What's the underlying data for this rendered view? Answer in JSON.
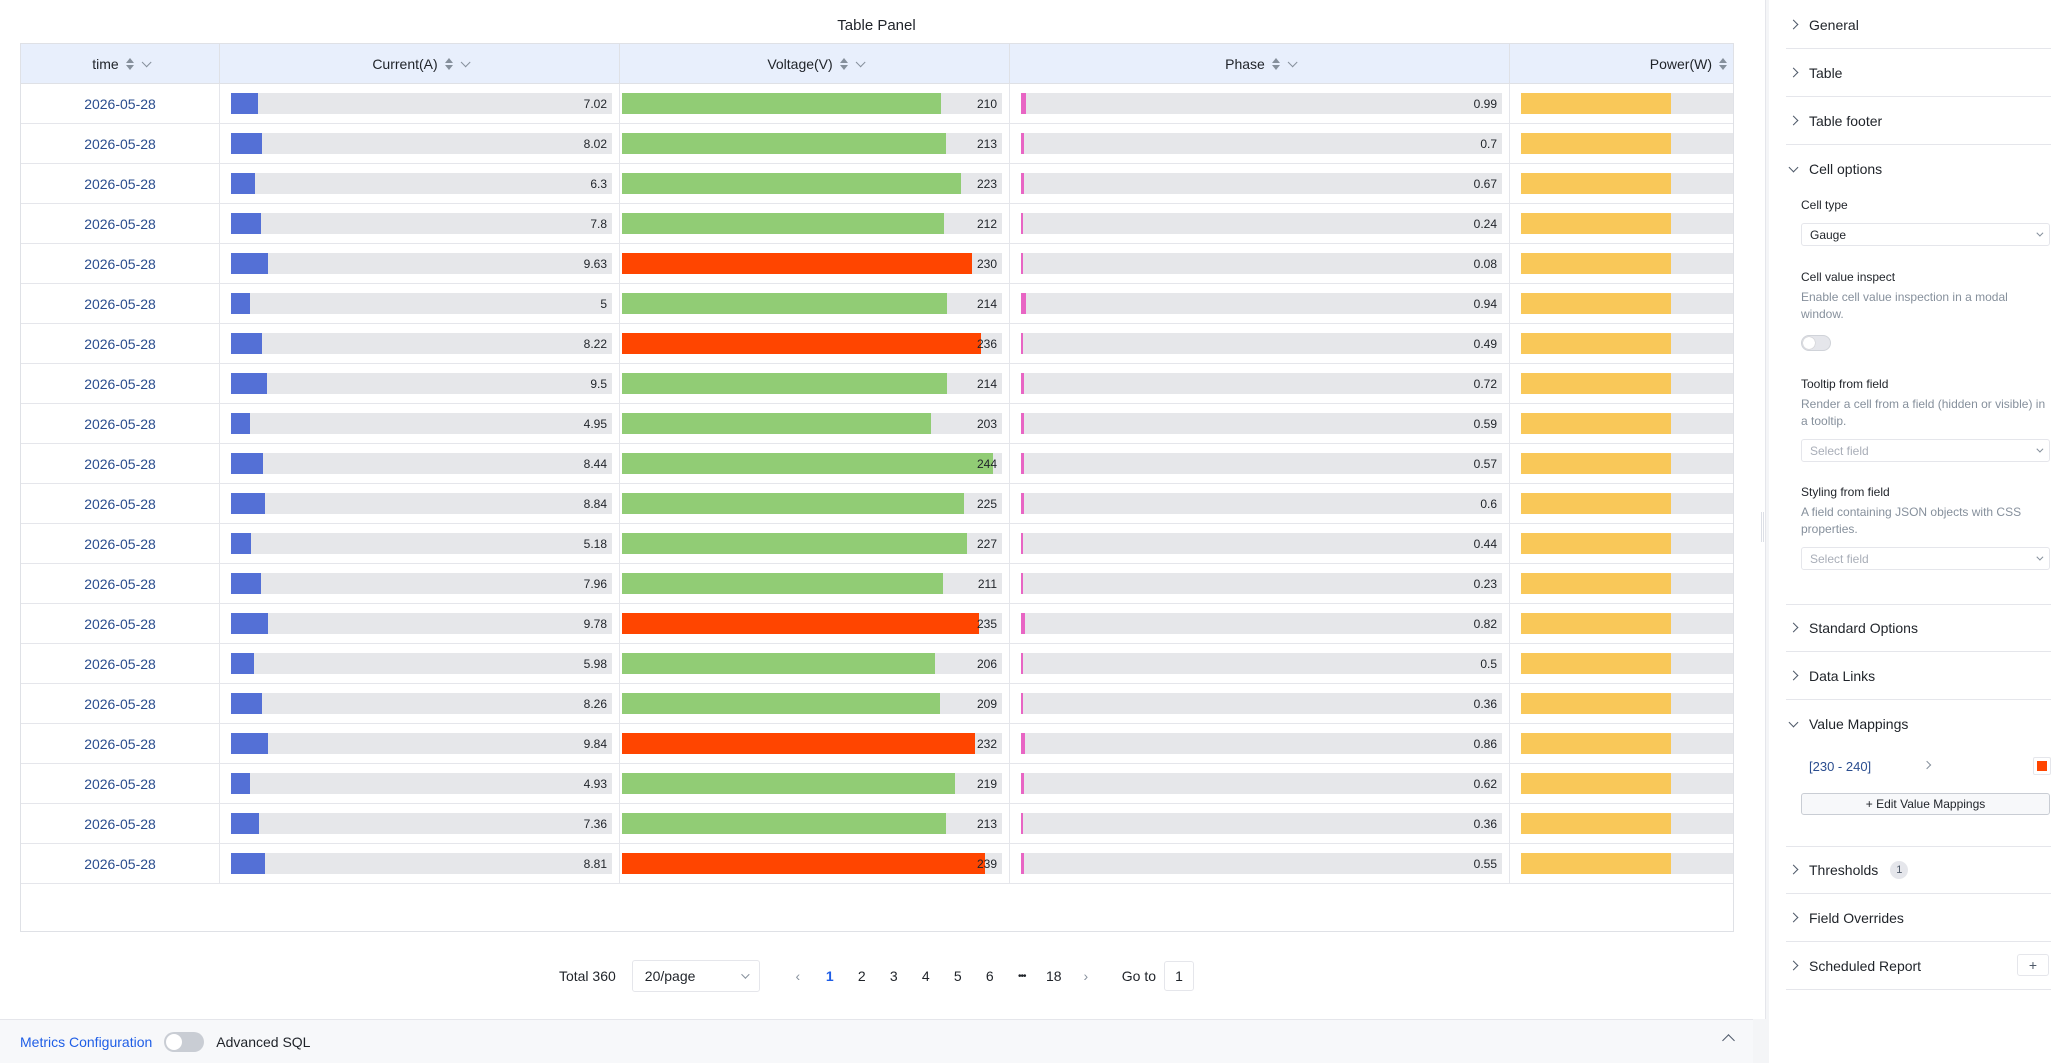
{
  "panel": {
    "title": "Table Panel"
  },
  "columns": [
    {
      "label": "time",
      "sortable": true,
      "filterable": true
    },
    {
      "label": "Current(A)",
      "sortable": true,
      "filterable": true,
      "max": 100,
      "color": "#5470d6"
    },
    {
      "label": "Voltage(V)",
      "sortable": true,
      "filterable": true,
      "max": 250,
      "color": "#91cc75",
      "mapped_color": "#ff4500"
    },
    {
      "label": "Phase",
      "sortable": true,
      "filterable": true,
      "max": 100,
      "color": "#e865c4"
    },
    {
      "label": "Power(W)",
      "sortable": false,
      "filterable": false,
      "color": "#f9c859"
    }
  ],
  "rows": [
    {
      "time": "2026-05-28",
      "current": "7.02",
      "voltage": "210",
      "phase": "0.99"
    },
    {
      "time": "2026-05-28",
      "current": "8.02",
      "voltage": "213",
      "phase": "0.7"
    },
    {
      "time": "2026-05-28",
      "current": "6.3",
      "voltage": "223",
      "phase": "0.67"
    },
    {
      "time": "2026-05-28",
      "current": "7.8",
      "voltage": "212",
      "phase": "0.24"
    },
    {
      "time": "2026-05-28",
      "current": "9.63",
      "voltage": "230",
      "phase": "0.08"
    },
    {
      "time": "2026-05-28",
      "current": "5",
      "voltage": "214",
      "phase": "0.94"
    },
    {
      "time": "2026-05-28",
      "current": "8.22",
      "voltage": "236",
      "phase": "0.49"
    },
    {
      "time": "2026-05-28",
      "current": "9.5",
      "voltage": "214",
      "phase": "0.72"
    },
    {
      "time": "2026-05-28",
      "current": "4.95",
      "voltage": "203",
      "phase": "0.59"
    },
    {
      "time": "2026-05-28",
      "current": "8.44",
      "voltage": "244",
      "phase": "0.57"
    },
    {
      "time": "2026-05-28",
      "current": "8.84",
      "voltage": "225",
      "phase": "0.6"
    },
    {
      "time": "2026-05-28",
      "current": "5.18",
      "voltage": "227",
      "phase": "0.44"
    },
    {
      "time": "2026-05-28",
      "current": "7.96",
      "voltage": "211",
      "phase": "0.23"
    },
    {
      "time": "2026-05-28",
      "current": "9.78",
      "voltage": "235",
      "phase": "0.82"
    },
    {
      "time": "2026-05-28",
      "current": "5.98",
      "voltage": "206",
      "phase": "0.5"
    },
    {
      "time": "2026-05-28",
      "current": "8.26",
      "voltage": "209",
      "phase": "0.36"
    },
    {
      "time": "2026-05-28",
      "current": "9.84",
      "voltage": "232",
      "phase": "0.86"
    },
    {
      "time": "2026-05-28",
      "current": "4.93",
      "voltage": "219",
      "phase": "0.62"
    },
    {
      "time": "2026-05-28",
      "current": "7.36",
      "voltage": "213",
      "phase": "0.36"
    },
    {
      "time": "2026-05-28",
      "current": "8.81",
      "voltage": "239",
      "phase": "0.55"
    }
  ],
  "pagination": {
    "total_label": "Total 360",
    "page_size": "20/page",
    "pages": [
      "1",
      "2",
      "3",
      "4",
      "5",
      "6"
    ],
    "ellipsis": "•••",
    "last_page": "18",
    "current_page": "1",
    "goto_label": "Go to",
    "goto_value": "1"
  },
  "bottom_bar": {
    "metrics_label": "Metrics Configuration",
    "advanced_sql_label": "Advanced SQL",
    "advanced_sql_enabled": false
  },
  "sidebar": {
    "general": "General",
    "table": "Table",
    "table_footer": "Table footer",
    "cell_options": "Cell options",
    "cell_type_label": "Cell type",
    "cell_type_value": "Gauge",
    "cell_inspect_label": "Cell value inspect",
    "cell_inspect_desc": "Enable cell value inspection in a modal window.",
    "cell_inspect_enabled": false,
    "tooltip_label": "Tooltip from field",
    "tooltip_desc": "Render a cell from a field (hidden or visible) in a tooltip.",
    "tooltip_placeholder": "Select field",
    "styling_label": "Styling from field",
    "styling_desc": "A field containing JSON objects with CSS properties.",
    "styling_placeholder": "Select field",
    "standard_options": "Standard Options",
    "data_links": "Data Links",
    "value_mappings": "Value Mappings",
    "mapping_range": "[230 - 240]",
    "mapping_color": "#ff4500",
    "edit_mappings": "+ Edit Value Mappings",
    "thresholds": "Thresholds",
    "thresholds_count": "1",
    "field_overrides": "Field Overrides",
    "scheduled_report": "Scheduled Report",
    "add_icon": "+"
  }
}
